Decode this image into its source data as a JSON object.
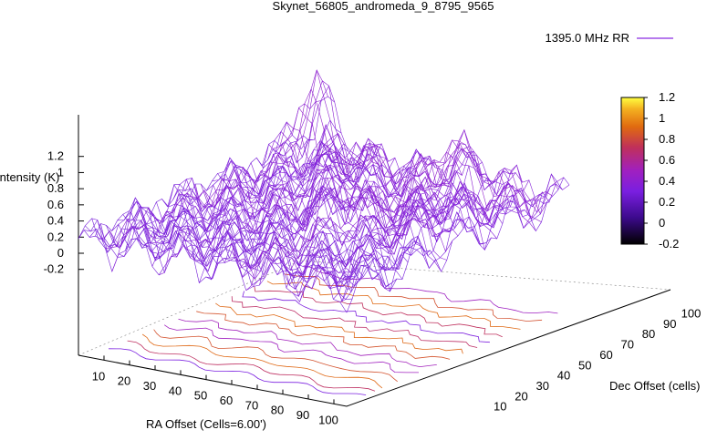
{
  "chart_data": {
    "type": "surface3d",
    "title": "Skynet_56805_andromeda_9_8795_9565",
    "legend": {
      "label": "1395.0 MHz RR",
      "placement": "top-right"
    },
    "zlabel": "Intensity (K)",
    "xlabel": "RA Offset (Cells=6.00')",
    "ylabel": "Dec Offset (cells)",
    "z_ticks": [
      "1.2",
      "1",
      "0.8",
      "0.6",
      "0.4",
      "0.2",
      "0",
      "-0.2"
    ],
    "x_ticks": [
      "10",
      "20",
      "30",
      "40",
      "50",
      "60",
      "70",
      "80",
      "90",
      "100"
    ],
    "y_ticks": [
      "10",
      "20",
      "30",
      "40",
      "50",
      "60",
      "70",
      "80",
      "90",
      "100"
    ],
    "colorbar_ticks": [
      "1.2",
      "1",
      "0.8",
      "0.6",
      "0.4",
      "0.2",
      "0",
      "-0.2"
    ],
    "zlim": [
      -0.2,
      1.2
    ],
    "xlim": [
      0,
      105
    ],
    "ylim": [
      0,
      105
    ],
    "colormap": [
      "#000000",
      "#3c0a8c",
      "#7a1fe0",
      "#a020c0",
      "#c0305a",
      "#e06a10",
      "#f4b020",
      "#ffff40"
    ],
    "has_contour_projection": true
  }
}
